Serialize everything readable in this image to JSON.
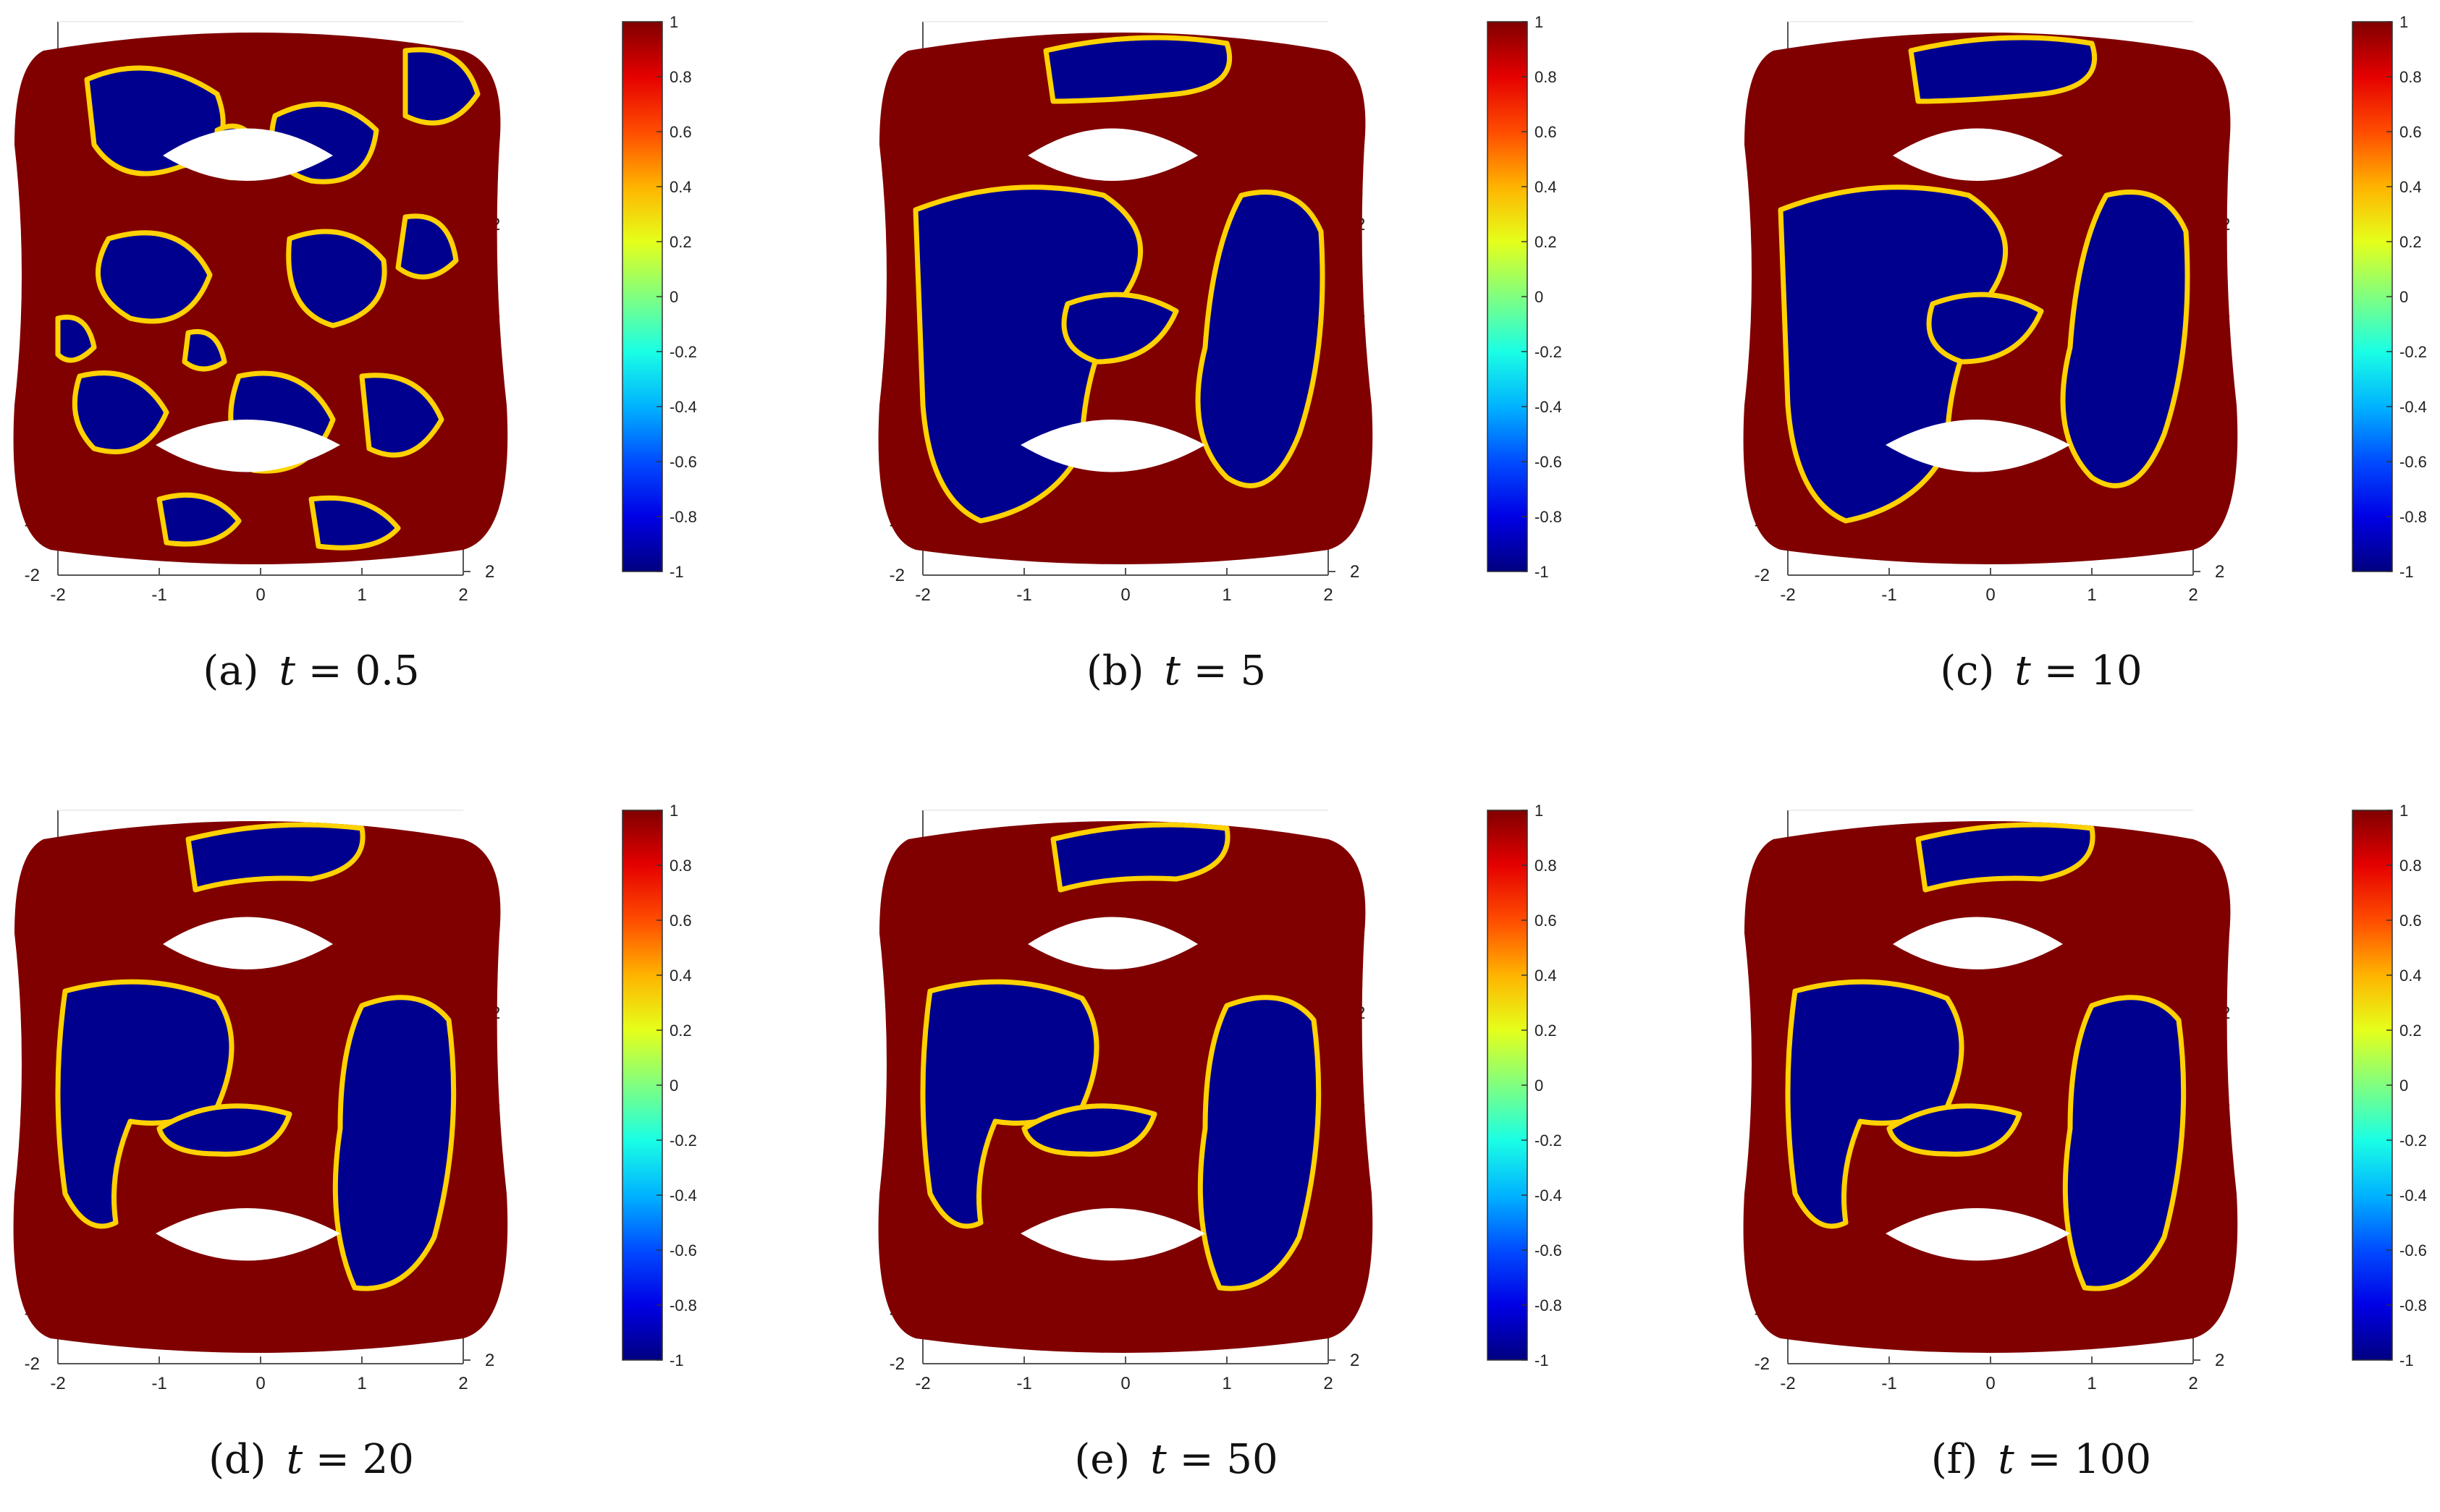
{
  "chart_data": [
    {
      "type": "heatmap",
      "label": "(a)",
      "time_symbol": "t",
      "time_value": "0.5",
      "x_ticks": [
        "-2",
        "-1",
        "0",
        "1",
        "2"
      ],
      "y_ticks": [
        "-2",
        "-1",
        "0",
        "1",
        "2"
      ],
      "z_ticks_right": [
        "-2",
        "-1",
        "0",
        "1",
        "2"
      ],
      "colorbar": {
        "min": -1,
        "max": 1,
        "ticks": [
          "1",
          "0.8",
          "0.6",
          "0.4",
          "0.2",
          "0",
          "-0.2",
          "-0.4",
          "-0.6",
          "-0.8",
          "-1"
        ],
        "colormap": "jet"
      },
      "blue_fraction": 0.5
    },
    {
      "type": "heatmap",
      "label": "(b)",
      "time_symbol": "t",
      "time_value": "5",
      "x_ticks": [
        "-2",
        "-1",
        "0",
        "1",
        "2"
      ],
      "y_ticks": [
        "-2",
        "-1",
        "0",
        "1",
        "2"
      ],
      "z_ticks_right": [
        "-2",
        "-1",
        "0",
        "1",
        "2"
      ],
      "colorbar": {
        "min": -1,
        "max": 1,
        "ticks": [
          "1",
          "0.8",
          "0.6",
          "0.4",
          "0.2",
          "0",
          "-0.2",
          "-0.4",
          "-0.6",
          "-0.8",
          "-1"
        ],
        "colormap": "jet"
      },
      "blue_fraction": 0.5
    },
    {
      "type": "heatmap",
      "label": "(c)",
      "time_symbol": "t",
      "time_value": "10",
      "x_ticks": [
        "-2",
        "-1",
        "0",
        "1",
        "2"
      ],
      "y_ticks": [
        "-2",
        "-1",
        "0",
        "1",
        "2"
      ],
      "z_ticks_right": [
        "-2",
        "-1",
        "0",
        "1",
        "2"
      ],
      "colorbar": {
        "min": -1,
        "max": 1,
        "ticks": [
          "1",
          "0.8",
          "0.6",
          "0.4",
          "0.2",
          "0",
          "-0.2",
          "-0.4",
          "-0.6",
          "-0.8",
          "-1"
        ],
        "colormap": "jet"
      },
      "blue_fraction": 0.5
    },
    {
      "type": "heatmap",
      "label": "(d)",
      "time_symbol": "t",
      "time_value": "20",
      "x_ticks": [
        "-2",
        "-1",
        "0",
        "1",
        "2"
      ],
      "y_ticks": [
        "-2",
        "-1",
        "0",
        "1",
        "2"
      ],
      "z_ticks_right": [
        "-2",
        "-1",
        "0",
        "1",
        "2"
      ],
      "colorbar": {
        "min": -1,
        "max": 1,
        "ticks": [
          "1",
          "0.8",
          "0.6",
          "0.4",
          "0.2",
          "0",
          "-0.2",
          "-0.4",
          "-0.6",
          "-0.8",
          "-1"
        ],
        "colormap": "jet"
      },
      "blue_fraction": 0.4
    },
    {
      "type": "heatmap",
      "label": "(e)",
      "time_symbol": "t",
      "time_value": "50",
      "x_ticks": [
        "-2",
        "-1",
        "0",
        "1",
        "2"
      ],
      "y_ticks": [
        "-2",
        "-1",
        "0",
        "1",
        "2"
      ],
      "z_ticks_right": [
        "-2",
        "-1",
        "0",
        "1",
        "2"
      ],
      "colorbar": {
        "min": -1,
        "max": 1,
        "ticks": [
          "1",
          "0.8",
          "0.6",
          "0.4",
          "0.2",
          "0",
          "-0.2",
          "-0.4",
          "-0.6",
          "-0.8",
          "-1"
        ],
        "colormap": "jet"
      },
      "blue_fraction": 0.35
    },
    {
      "type": "heatmap",
      "label": "(f)",
      "time_symbol": "t",
      "time_value": "100",
      "x_ticks": [
        "-2",
        "-1",
        "0",
        "1",
        "2"
      ],
      "y_ticks": [
        "-2",
        "-1",
        "0",
        "1",
        "2"
      ],
      "z_ticks_right": [
        "-2",
        "-1",
        "0",
        "1",
        "2"
      ],
      "colorbar": {
        "min": -1,
        "max": 1,
        "ticks": [
          "1",
          "0.8",
          "0.6",
          "0.4",
          "0.2",
          "0",
          "-0.2",
          "-0.4",
          "-0.6",
          "-0.8",
          "-1"
        ],
        "colormap": "jet"
      },
      "blue_fraction": 0.35
    }
  ],
  "colors": {
    "red_phase": "#800000",
    "blue_phase": "#00008f",
    "interface": "#ffd200",
    "axis": "#555555"
  }
}
